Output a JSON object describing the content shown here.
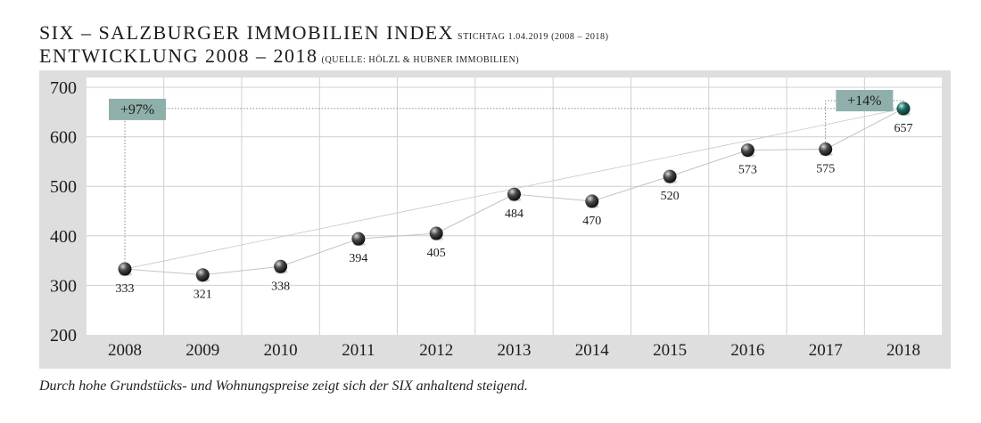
{
  "header": {
    "title": "SIX – SALZBURGER IMMOBILIEN INDEX",
    "title_note": "STICHTAG 1.04.2019 (2008 – 2018)",
    "subtitle": "ENTWICKLUNG 2008 – 2018",
    "subtitle_note": "(QUELLE: HÖLZL & HUBNER IMMOBILIEN)"
  },
  "caption": "Durch hohe Grundstücks- und Wohnungspreise zeigt sich der SIX anhaltend steigend.",
  "chart_data": {
    "type": "line",
    "categories": [
      "2008",
      "2009",
      "2010",
      "2011",
      "2012",
      "2013",
      "2014",
      "2015",
      "2016",
      "2017",
      "2018"
    ],
    "values": [
      333,
      321,
      338,
      394,
      405,
      484,
      470,
      520,
      573,
      575,
      657
    ],
    "value_labels": [
      "333",
      "321",
      "338",
      "394",
      "405",
      "484",
      "470",
      "520",
      "573",
      "575",
      "657"
    ],
    "ylim": [
      200,
      700
    ],
    "yticks": [
      200,
      300,
      400,
      500,
      600,
      700
    ],
    "grid": true,
    "annotations": [
      {
        "text": "+97%",
        "from_category": "2008",
        "to_category": "2018"
      },
      {
        "text": "+14%",
        "from_category": "2017",
        "to_category": "2018"
      }
    ],
    "colors": {
      "marker": "#2a2a2a",
      "highlight_marker": "#1f6b63",
      "badge": "#8fb0aa",
      "panel": "#dedede",
      "plot": "#ffffff",
      "grid": "#d0d0d0"
    }
  }
}
